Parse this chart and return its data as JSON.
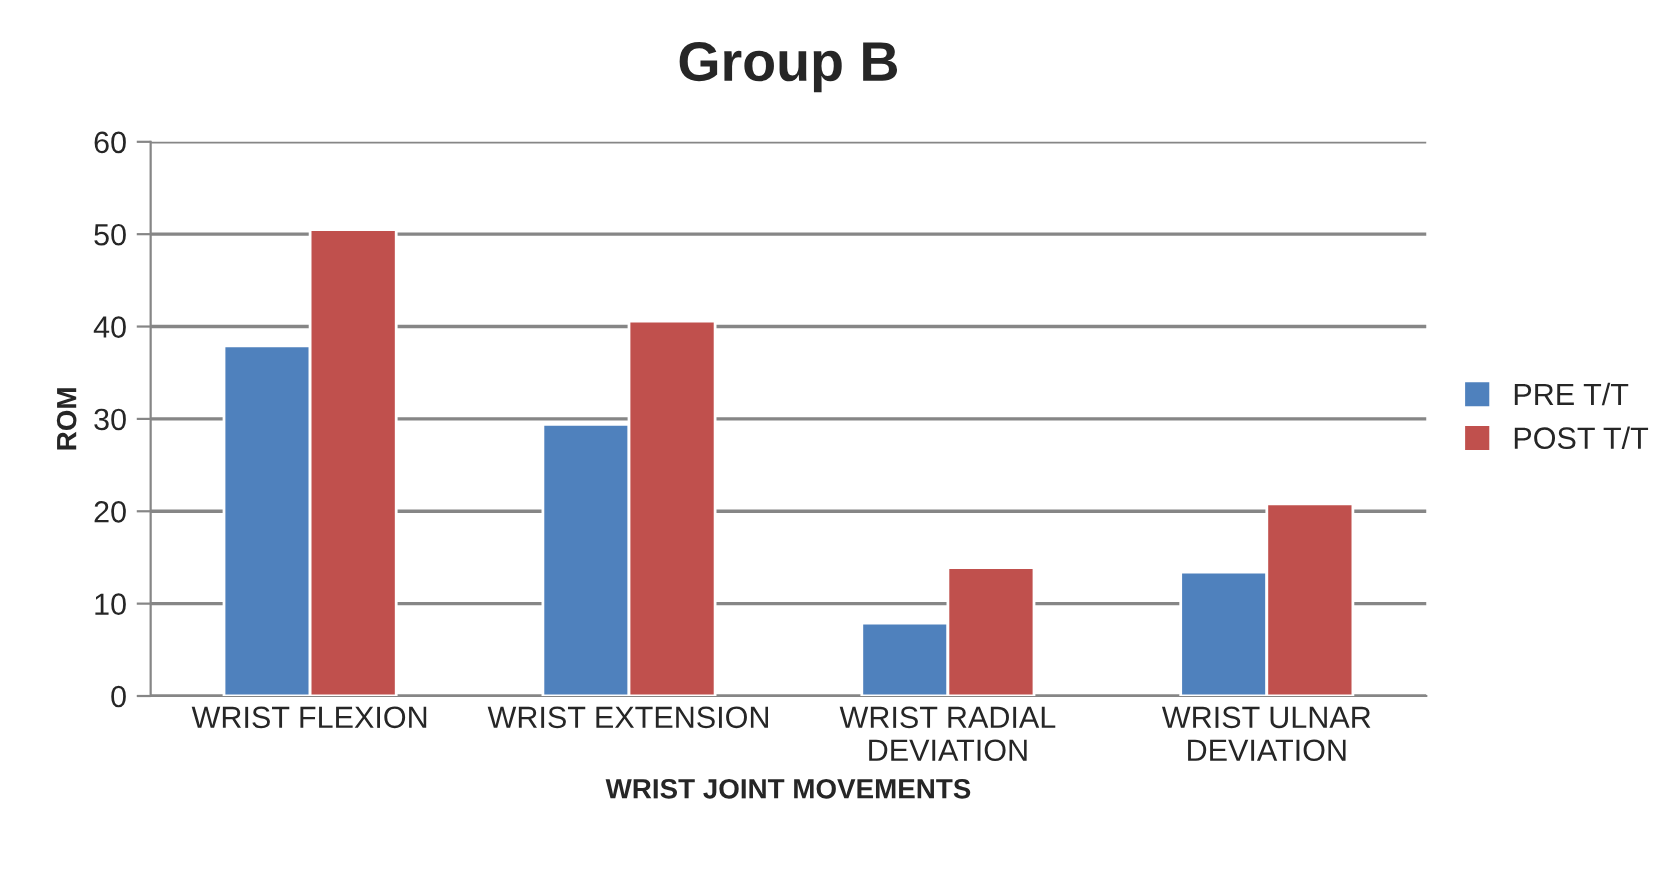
{
  "chart_data": {
    "type": "bar",
    "title": "Group B",
    "xlabel": "WRIST JOINT MOVEMENTS",
    "ylabel": "ROM",
    "categories": [
      "WRIST FLEXION",
      "WRIST EXTENSION",
      "WRIST RADIAL\nDEVIATION",
      "WRIST ULNAR\nDEVIATION"
    ],
    "series": [
      {
        "name": "PRE T/T",
        "color": "#4f81bd",
        "values": [
          37.9,
          29.4,
          7.9,
          13.4
        ]
      },
      {
        "name": "POST T/T",
        "color": "#c0504d",
        "values": [
          50.5,
          40.6,
          13.9,
          20.8
        ]
      }
    ],
    "ylim": [
      0,
      60
    ],
    "yticks": [
      0,
      10,
      20,
      30,
      40,
      50,
      60
    ],
    "grid": "y",
    "legend": "right"
  }
}
